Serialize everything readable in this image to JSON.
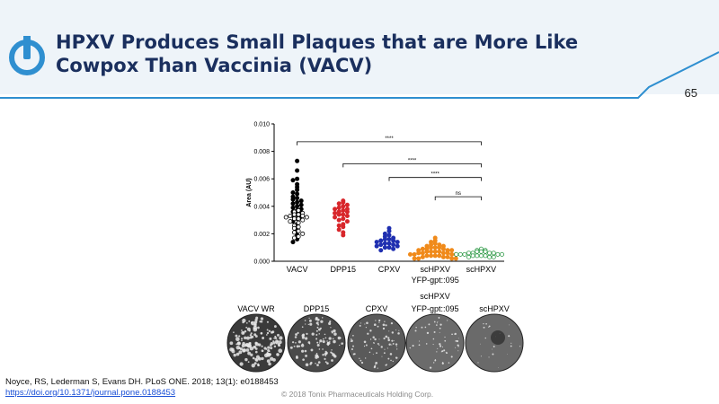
{
  "slide": {
    "title": "HPXV Produces Small Plaques that are More Like Cowpox Than Vaccinia (VACV)",
    "page_number": "65",
    "citation_line1": "Noyce, RS, Lederman S, Evans DH. PLoS ONE. 2018; 13(1): e0188453",
    "citation_link": "https://doi.org/10.1371/journal.pone.0188453",
    "copyright": "© 2018 Tonix Pharmaceuticals Holding Corp.",
    "colors": {
      "title": "#1a2f5e",
      "accent": "#2f8fd0",
      "header_bg": "#eef4f9"
    },
    "logo_icon": "power-icon"
  },
  "chart_data": {
    "type": "scatter",
    "ylabel": "Area (AU)",
    "ylim": [
      0,
      0.01
    ],
    "yticks": [
      "0.000",
      "0.002",
      "0.004",
      "0.006",
      "0.008",
      "0.010"
    ],
    "categories": [
      "VACV",
      "DPP15",
      "CPXV",
      "scHPXV YFP-gpt::095",
      "scHPXV"
    ],
    "xtick_labels": [
      {
        "line1": "VACV",
        "line2": ""
      },
      {
        "line1": "DPP15",
        "line2": ""
      },
      {
        "line1": "CPXV",
        "line2": ""
      },
      {
        "line1": "scHPXV",
        "line2": "YFP-gpt::095"
      },
      {
        "line1": "scHPXV",
        "line2": ""
      }
    ],
    "series": [
      {
        "color": "#000000",
        "filled": true,
        "values": [
          0.0073,
          0.0066,
          0.006,
          0.0059,
          0.0056,
          0.0054,
          0.0052,
          0.005,
          0.0049,
          0.0047,
          0.0046,
          0.0045,
          0.0044,
          0.0043,
          0.0042,
          0.0041,
          0.004,
          0.0039,
          0.0038,
          0.0037,
          0.0036,
          0.0035,
          0.0034,
          0.0033,
          0.0032,
          0.0031,
          0.0029,
          0.0027,
          0.0024,
          0.0022,
          0.0019,
          0.0016,
          0.0014
        ]
      },
      {
        "color": "#000000",
        "filled": false,
        "values": [
          0.0037,
          0.0036,
          0.0035,
          0.0034,
          0.0034,
          0.0033,
          0.0033,
          0.0032,
          0.0032,
          0.0031,
          0.0031,
          0.003,
          0.0029,
          0.0028,
          0.0026,
          0.0025,
          0.0024,
          0.0022,
          0.0021,
          0.002,
          0.0018,
          0.0017
        ]
      },
      {
        "color": "#d8262b",
        "filled": true,
        "values": [
          0.0044,
          0.0043,
          0.0042,
          0.0041,
          0.004,
          0.0039,
          0.0038,
          0.0038,
          0.0037,
          0.0036,
          0.0036,
          0.0035,
          0.0034,
          0.0034,
          0.0033,
          0.0032,
          0.0031,
          0.003,
          0.0029,
          0.0027,
          0.0026,
          0.0025,
          0.0023,
          0.0021,
          0.0019
        ]
      },
      {
        "color": "#1f2fb0",
        "filled": true,
        "values": [
          0.0024,
          0.0022,
          0.002,
          0.0019,
          0.0018,
          0.0017,
          0.0016,
          0.0016,
          0.0015,
          0.0015,
          0.0014,
          0.0014,
          0.0013,
          0.0013,
          0.0012,
          0.0012,
          0.0011,
          0.0011,
          0.001,
          0.001,
          0.0009,
          0.0008
        ]
      },
      {
        "color": "#f08a1a",
        "filled": true,
        "values": [
          0.0017,
          0.0015,
          0.0014,
          0.0013,
          0.0012,
          0.0012,
          0.0011,
          0.0011,
          0.001,
          0.001,
          0.001,
          0.0009,
          0.0009,
          0.0009,
          0.0008,
          0.0008,
          0.0008,
          0.0007,
          0.0007,
          0.0007,
          0.0007,
          0.0006,
          0.0006,
          0.0006,
          0.0006,
          0.0005,
          0.0005,
          0.0005,
          0.0005,
          0.0004,
          0.0004,
          0.0004,
          0.0004,
          0.0003,
          0.0003,
          0.0003,
          0.0002,
          0.0002,
          0.0002,
          0.0002
        ]
      },
      {
        "color": "#2f9a47",
        "filled": false,
        "values": [
          0.0009,
          0.0008,
          0.0008,
          0.0007,
          0.0007,
          0.0007,
          0.0006,
          0.0006,
          0.0006,
          0.0006,
          0.0005,
          0.0005,
          0.0005,
          0.0005,
          0.0005,
          0.0004,
          0.0004,
          0.0004,
          0.0004,
          0.0003,
          0.0003,
          0.0003
        ]
      }
    ],
    "series_group": [
      0,
      0,
      1,
      2,
      3,
      4
    ],
    "significance": [
      {
        "from": 0,
        "to": 4,
        "label": "****",
        "y": 0.0087
      },
      {
        "from": 1,
        "to": 4,
        "label": "****",
        "y": 0.0071
      },
      {
        "from": 2,
        "to": 4,
        "label": "****",
        "y": 0.0061
      },
      {
        "from": 3,
        "to": 4,
        "label": "ns",
        "y": 0.0047
      }
    ]
  },
  "plaques": [
    {
      "line1": "VACV WR",
      "line2": "",
      "tone": "#3a3a3a",
      "texture": "dense-large"
    },
    {
      "line1": "DPP15",
      "line2": "",
      "tone": "#4a4a4a",
      "texture": "medium"
    },
    {
      "line1": "CPXV",
      "line2": "",
      "tone": "#5a5a5a",
      "texture": "small"
    },
    {
      "line1": "scHPXV",
      "line2": "YFP-gpt::095",
      "tone": "#6b6b6b",
      "texture": "small-sparse"
    },
    {
      "line1": "scHPXV",
      "line2": "",
      "tone": "#6a6a6a",
      "texture": "very-sparse"
    }
  ]
}
